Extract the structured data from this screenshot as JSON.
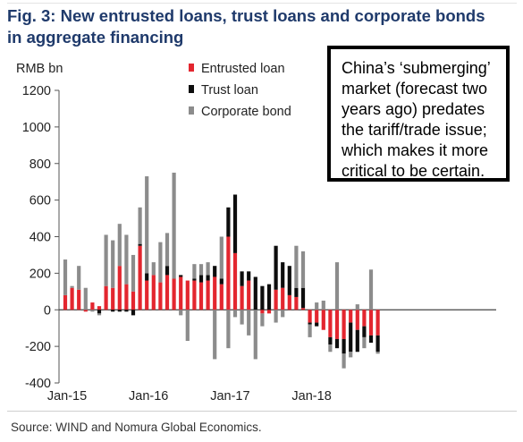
{
  "title": {
    "line1": "Fig. 3: New entrusted loans, trust loans and corporate bonds",
    "line2": "in aggregate financing"
  },
  "note": "China’s ‘submerging’ market (forecast two years ago) predates the tariff/trade issue; which makes it more critical to be certain.",
  "source": "Source: WIND and Nomura Global Economics.",
  "colors": {
    "entrusted": "#e3262f",
    "trust": "#0d0d0d",
    "corporate": "#8c8c8c",
    "title": "#1f3a6b"
  },
  "chart_data": {
    "type": "bar",
    "stacked": true,
    "ylabel": "RMB bn",
    "ylim": [
      -400,
      1200
    ],
    "yticks": [
      -400,
      -200,
      0,
      200,
      400,
      600,
      800,
      1000,
      1200
    ],
    "xtick_labels": [
      "Jan-15",
      "Jan-16",
      "Jan-17",
      "Jan-18"
    ],
    "xtick_positions": [
      0,
      12,
      24,
      36
    ],
    "legend_position": "top-center",
    "categories": [
      "2015-01",
      "2015-02",
      "2015-03",
      "2015-04",
      "2015-05",
      "2015-06",
      "2015-07",
      "2015-08",
      "2015-09",
      "2015-10",
      "2015-11",
      "2015-12",
      "2016-01",
      "2016-02",
      "2016-03",
      "2016-04",
      "2016-05",
      "2016-06",
      "2016-07",
      "2016-08",
      "2016-09",
      "2016-10",
      "2016-11",
      "2016-12",
      "2017-01",
      "2017-02",
      "2017-03",
      "2017-04",
      "2017-05",
      "2017-06",
      "2017-07",
      "2017-08",
      "2017-09",
      "2017-10",
      "2017-11",
      "2017-12",
      "2018-01",
      "2018-02",
      "2018-03",
      "2018-04",
      "2018-05",
      "2018-06",
      "2018-07",
      "2018-08",
      "2018-09",
      "2018-10",
      "2018-11"
    ],
    "series": [
      {
        "name": "Entrusted loan",
        "values": [
          80,
          120,
          110,
          -10,
          40,
          20,
          130,
          120,
          240,
          140,
          100,
          350,
          160,
          190,
          150,
          190,
          170,
          180,
          160,
          160,
          150,
          160,
          180,
          140,
          400,
          310,
          130,
          160,
          0,
          -20,
          -20,
          110,
          120,
          80,
          70,
          10,
          -70,
          -70,
          -110,
          -150,
          -160,
          -160,
          -70,
          -110,
          -90,
          -140,
          -140
        ]
      },
      {
        "name": "Trust loan",
        "values": [
          0,
          0,
          0,
          0,
          0,
          -20,
          0,
          -10,
          -10,
          -10,
          -30,
          10,
          40,
          0,
          0,
          50,
          0,
          10,
          0,
          10,
          40,
          30,
          60,
          30,
          160,
          320,
          80,
          50,
          180,
          130,
          140,
          240,
          140,
          160,
          50,
          110,
          -10,
          -20,
          0,
          -40,
          -50,
          -80,
          -160,
          -120,
          -60,
          -40,
          -90
        ]
      },
      {
        "name": "Corporate bond",
        "values": [
          195,
          10,
          130,
          120,
          -10,
          -10,
          280,
          260,
          230,
          270,
          200,
          200,
          530,
          70,
          220,
          180,
          580,
          -30,
          -170,
          80,
          60,
          70,
          -270,
          230,
          -210,
          -40,
          -80,
          -140,
          -270,
          -70,
          0,
          -70,
          -40,
          0,
          230,
          200,
          -70,
          40,
          50,
          -40,
          260,
          -80,
          -30,
          30,
          -60,
          220,
          -10
        ]
      }
    ]
  }
}
